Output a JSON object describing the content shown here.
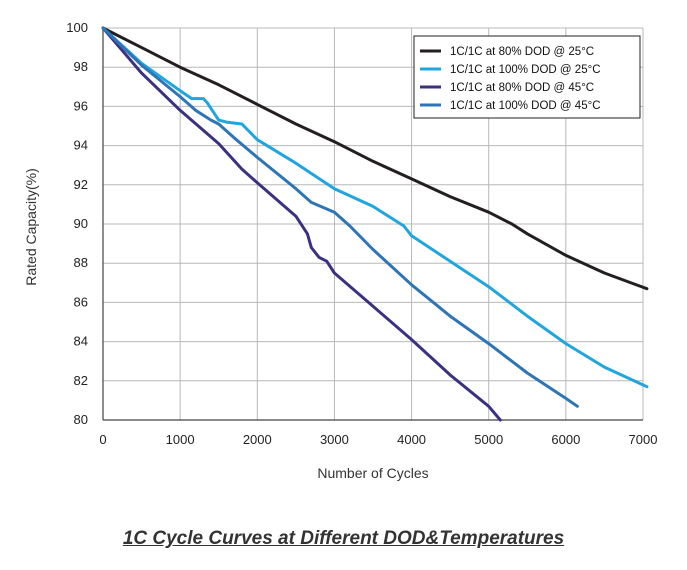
{
  "caption": "1C Cycle Curves at Different DOD&Temperatures",
  "chart_data": {
    "type": "line",
    "title": "",
    "xlabel": "Number of Cycles",
    "ylabel": "Rated Capacity(%)",
    "xlim": [
      0,
      7000
    ],
    "ylim": [
      80,
      100
    ],
    "xticks": [
      0,
      1000,
      2000,
      3000,
      4000,
      5000,
      6000,
      7000
    ],
    "yticks": [
      80,
      82,
      84,
      86,
      88,
      90,
      92,
      94,
      96,
      98,
      100
    ],
    "grid": true,
    "legend_position": "top-right",
    "series": [
      {
        "name": "1C/1C at 80% DOD @ 25°C",
        "color": "#231f20",
        "x": [
          0,
          500,
          1000,
          1500,
          2000,
          2500,
          3000,
          3500,
          4000,
          4500,
          5000,
          5300,
          5500,
          6000,
          6500,
          7050
        ],
        "y": [
          100,
          99,
          98,
          97.1,
          96.1,
          95.1,
          94.2,
          93.2,
          92.3,
          91.4,
          90.6,
          90,
          89.5,
          88.4,
          87.5,
          86.7
        ]
      },
      {
        "name": "1C/1C at 100% DOD @ 25°C",
        "color": "#20a5dd",
        "x": [
          0,
          500,
          1000,
          1150,
          1300,
          1350,
          1400,
          1500,
          1600,
          1800,
          2000,
          2500,
          3000,
          3500,
          3900,
          4000,
          4500,
          5000,
          5500,
          6000,
          6500,
          7050
        ],
        "y": [
          100,
          98.2,
          96.8,
          96.4,
          96.4,
          96.2,
          95.9,
          95.3,
          95.2,
          95.1,
          94.3,
          93.1,
          91.8,
          90.9,
          89.9,
          89.4,
          88.1,
          86.8,
          85.3,
          83.9,
          82.7,
          81.7
        ]
      },
      {
        "name": "1C/1C at 80% DOD @ 45°C",
        "color": "#3a3180",
        "x": [
          0,
          500,
          1000,
          1500,
          1800,
          2000,
          2500,
          2650,
          2700,
          2800,
          2900,
          3000,
          3500,
          4000,
          4500,
          5000,
          5150
        ],
        "y": [
          100,
          97.7,
          95.8,
          94.1,
          92.8,
          92.1,
          90.4,
          89.5,
          88.8,
          88.3,
          88.1,
          87.5,
          85.8,
          84.1,
          82.3,
          80.7,
          80
        ]
      },
      {
        "name": "1C/1C at 100% DOD @ 45°C",
        "color": "#2e75b6",
        "x": [
          0,
          500,
          1000,
          1200,
          1400,
          1500,
          1700,
          2000,
          2500,
          2700,
          3000,
          3200,
          3500,
          4000,
          4500,
          5000,
          5500,
          6000,
          6150
        ],
        "y": [
          100,
          98.1,
          96.5,
          95.8,
          95.3,
          95.1,
          94.4,
          93.4,
          91.8,
          91.1,
          90.6,
          89.9,
          88.7,
          86.9,
          85.3,
          83.9,
          82.4,
          81.1,
          80.7
        ]
      }
    ]
  }
}
